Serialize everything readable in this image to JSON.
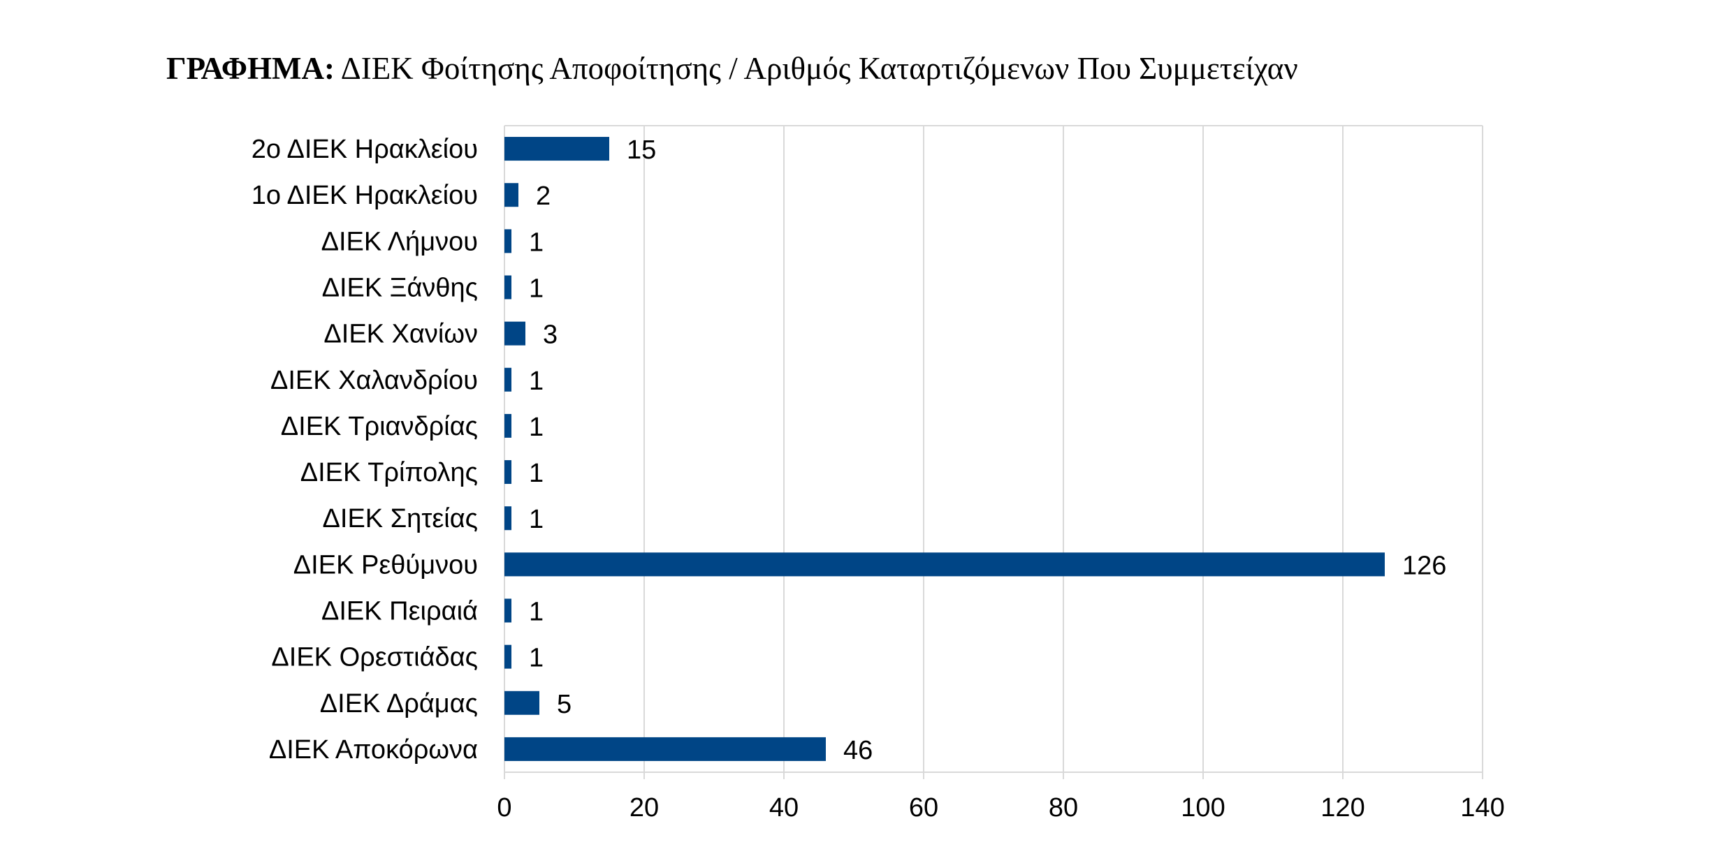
{
  "chart_data": {
    "type": "bar",
    "orientation": "horizontal",
    "title_prefix": "ΓΡΑΦΗΜΑ:",
    "title": "ΔΙΕΚ Φοίτησης Αποφοίτησης / Αριθμός Καταρτιζόμενων Που Συμμετείχαν",
    "categories": [
      "2ο ΔΙΕΚ Ηρακλείου",
      "1ο ΔΙΕΚ Ηρακλείου",
      "ΔΙΕΚ  Λήμνου",
      "ΔΙΕΚ  Ξάνθης",
      "ΔΙΕΚ Χανίων",
      "ΔΙΕΚ Χαλανδρίου",
      "ΔΙΕΚ Τριανδρίας",
      "ΔΙΕΚ Τρίπολης",
      "ΔΙΕΚ Σητείας",
      "ΔΙΕΚ Ρεθύμνου",
      "ΔΙΕΚ Πειραιά",
      "ΔΙΕΚ Ορεστιάδας",
      "ΔΙΕΚ Δράμας",
      "ΔΙΕΚ Αποκόρωνα"
    ],
    "values": [
      15,
      2,
      1,
      1,
      3,
      1,
      1,
      1,
      1,
      126,
      1,
      1,
      5,
      46
    ],
    "xlim": [
      0,
      140
    ],
    "xticks": [
      0,
      20,
      40,
      60,
      80,
      100,
      120,
      140
    ],
    "grid": true,
    "data_labels": true,
    "bar_color": "#004586",
    "grid_color": "#d9d9d9"
  }
}
